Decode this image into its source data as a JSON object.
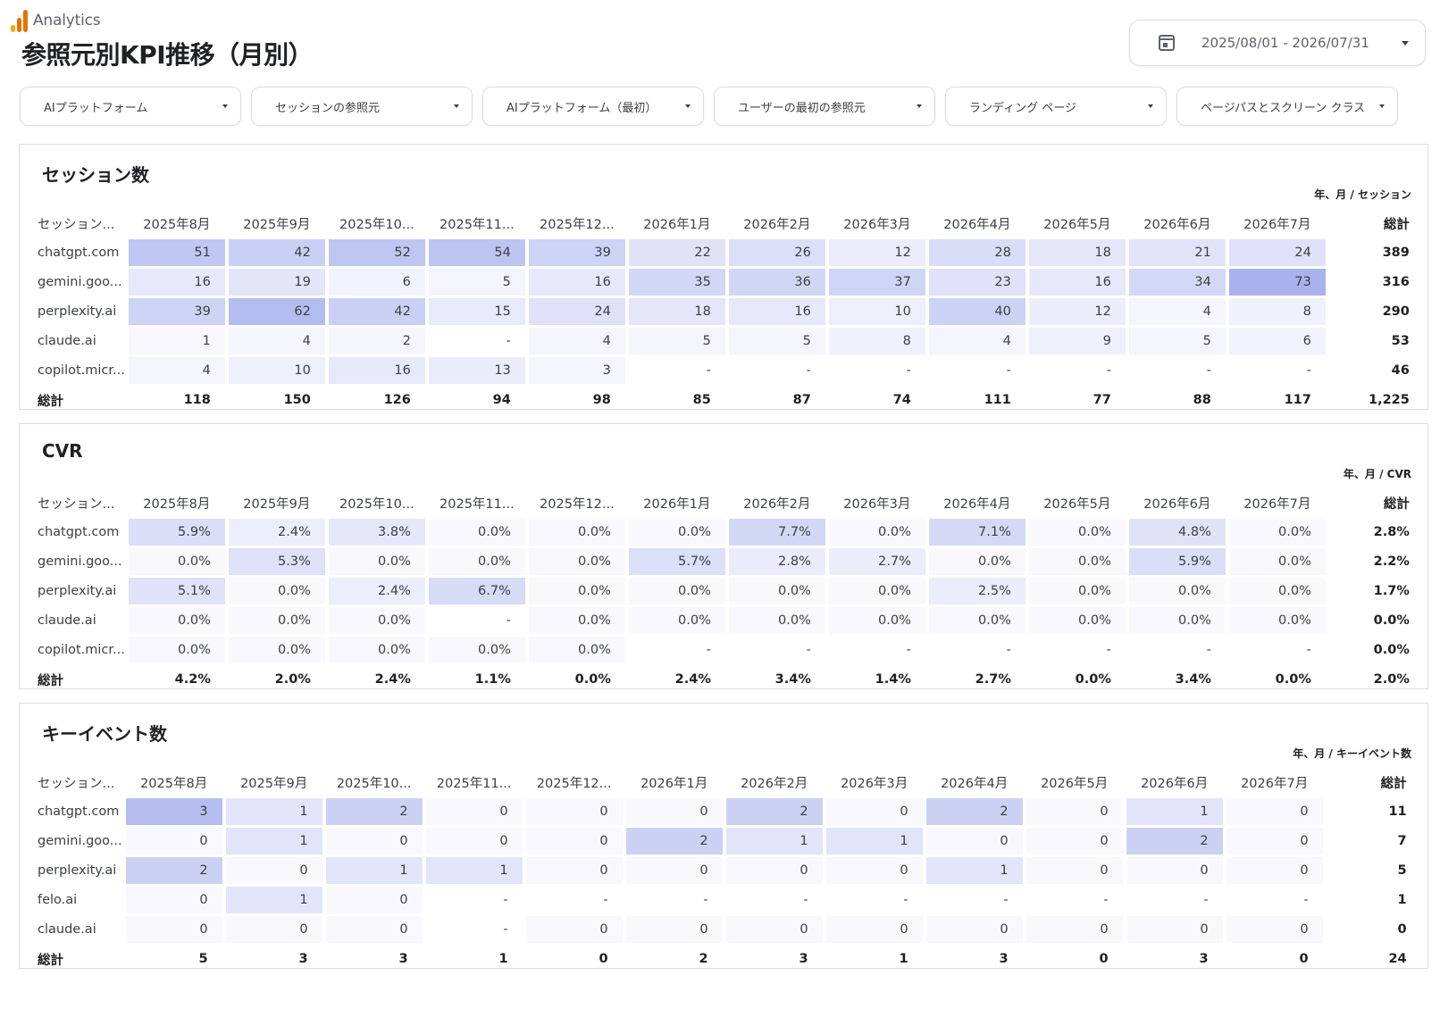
{
  "app": {
    "name": "Analytics",
    "logo_colors": [
      "#f9ab00",
      "#e37400",
      "#e37400"
    ]
  },
  "page_title": "参照元別KPI推移（月別）",
  "date_range": {
    "value": "2025/08/01 - 2026/07/31",
    "icon": "calendar-icon"
  },
  "filters": [
    {
      "label": "AIプラットフォーム"
    },
    {
      "label": "セッションの参照元"
    },
    {
      "label": "AIプラットフォーム（最初）"
    },
    {
      "label": "ユーザーの最初の参照元"
    },
    {
      "label": "ランディング ページ"
    },
    {
      "label": "ページパスとスクリーン クラス"
    }
  ],
  "heat_color": "#6f7fe0",
  "columns": [
    "セッション...",
    "2025年8月",
    "2025年9月",
    "2025年10...",
    "2025年11...",
    "2025年12...",
    "2026年1月",
    "2026年2月",
    "2026年3月",
    "2026年4月",
    "2026年5月",
    "2026年6月",
    "2026年7月",
    "総計"
  ],
  "tables": [
    {
      "title": "セッション数",
      "subtitle": "年、月 / セッション",
      "max": 73,
      "rows": [
        {
          "label": "chatgpt.com",
          "values": [
            "51",
            "42",
            "52",
            "54",
            "39",
            "22",
            "26",
            "12",
            "28",
            "18",
            "21",
            "24"
          ],
          "total": "389"
        },
        {
          "label": "gemini.goo...",
          "values": [
            "16",
            "19",
            "6",
            "5",
            "16",
            "35",
            "36",
            "37",
            "23",
            "16",
            "34",
            "73"
          ],
          "total": "316"
        },
        {
          "label": "perplexity.ai",
          "values": [
            "39",
            "62",
            "42",
            "15",
            "24",
            "18",
            "16",
            "10",
            "40",
            "12",
            "4",
            "8"
          ],
          "total": "290"
        },
        {
          "label": "claude.ai",
          "values": [
            "1",
            "4",
            "2",
            "-",
            "4",
            "5",
            "5",
            "8",
            "4",
            "9",
            "5",
            "6"
          ],
          "total": "53"
        },
        {
          "label": "copilot.micr...",
          "values": [
            "4",
            "10",
            "16",
            "13",
            "3",
            "-",
            "-",
            "-",
            "-",
            "-",
            "-",
            "-"
          ],
          "total": "46"
        }
      ],
      "total_row": {
        "label": "総計",
        "values": [
          "118",
          "150",
          "126",
          "94",
          "98",
          "85",
          "87",
          "74",
          "111",
          "77",
          "88",
          "117"
        ],
        "total": "1,225"
      }
    },
    {
      "title": "CVR",
      "subtitle": "年、月 / CVR",
      "max": 16,
      "rows": [
        {
          "label": "chatgpt.com",
          "values": [
            "5.9%",
            "2.4%",
            "3.8%",
            "0.0%",
            "0.0%",
            "0.0%",
            "7.7%",
            "0.0%",
            "7.1%",
            "0.0%",
            "4.8%",
            "0.0%"
          ],
          "total": "2.8%"
        },
        {
          "label": "gemini.goo...",
          "values": [
            "0.0%",
            "5.3%",
            "0.0%",
            "0.0%",
            "0.0%",
            "5.7%",
            "2.8%",
            "2.7%",
            "0.0%",
            "0.0%",
            "5.9%",
            "0.0%"
          ],
          "total": "2.2%"
        },
        {
          "label": "perplexity.ai",
          "values": [
            "5.1%",
            "0.0%",
            "2.4%",
            "6.7%",
            "0.0%",
            "0.0%",
            "0.0%",
            "0.0%",
            "2.5%",
            "0.0%",
            "0.0%",
            "0.0%"
          ],
          "total": "1.7%"
        },
        {
          "label": "claude.ai",
          "values": [
            "0.0%",
            "0.0%",
            "0.0%",
            "-",
            "0.0%",
            "0.0%",
            "0.0%",
            "0.0%",
            "0.0%",
            "0.0%",
            "0.0%",
            "0.0%"
          ],
          "total": "0.0%"
        },
        {
          "label": "copilot.micr...",
          "values": [
            "0.0%",
            "0.0%",
            "0.0%",
            "0.0%",
            "0.0%",
            "-",
            "-",
            "-",
            "-",
            "-",
            "-",
            "-"
          ],
          "total": "0.0%"
        }
      ],
      "total_row": {
        "label": "総計",
        "values": [
          "4.2%",
          "2.0%",
          "2.4%",
          "1.1%",
          "0.0%",
          "2.4%",
          "3.4%",
          "1.4%",
          "2.7%",
          "0.0%",
          "3.4%",
          "0.0%"
        ],
        "total": "2.0%"
      }
    },
    {
      "title": "キーイベント数",
      "subtitle": "年、月 / キーイベント数",
      "max": 3.6,
      "rows": [
        {
          "label": "chatgpt.com",
          "values": [
            "3",
            "1",
            "2",
            "0",
            "0",
            "0",
            "2",
            "0",
            "2",
            "0",
            "1",
            "0"
          ],
          "total": "11"
        },
        {
          "label": "gemini.goo...",
          "values": [
            "0",
            "1",
            "0",
            "0",
            "0",
            "2",
            "1",
            "1",
            "0",
            "0",
            "2",
            "0"
          ],
          "total": "7"
        },
        {
          "label": "perplexity.ai",
          "values": [
            "2",
            "0",
            "1",
            "1",
            "0",
            "0",
            "0",
            "0",
            "1",
            "0",
            "0",
            "0"
          ],
          "total": "5"
        },
        {
          "label": "felo.ai",
          "values": [
            "0",
            "1",
            "0",
            "-",
            "-",
            "-",
            "-",
            "-",
            "-",
            "-",
            "-",
            "-"
          ],
          "total": "1"
        },
        {
          "label": "claude.ai",
          "values": [
            "0",
            "0",
            "0",
            "-",
            "0",
            "0",
            "0",
            "0",
            "0",
            "0",
            "0",
            "0"
          ],
          "total": "0"
        }
      ],
      "total_row": {
        "label": "総計",
        "values": [
          "5",
          "3",
          "3",
          "1",
          "0",
          "2",
          "3",
          "1",
          "3",
          "0",
          "3",
          "0"
        ],
        "total": "24"
      }
    }
  ]
}
